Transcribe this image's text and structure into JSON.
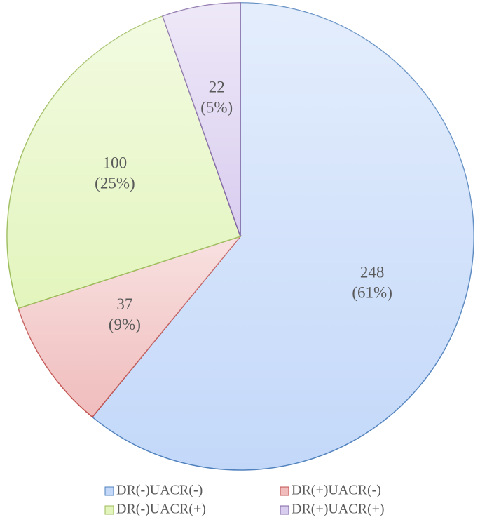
{
  "chart_data": {
    "type": "pie",
    "categories": [
      "DR(-)UACR(-)",
      "DR(+)UACR(-)",
      "DR(-)UACR(+)",
      "DR(+)UACR(+)"
    ],
    "values": [
      248,
      37,
      100,
      22
    ],
    "value_labels": [
      [
        "248",
        "(61%)"
      ],
      [
        "37",
        "(9%)"
      ],
      [
        "100",
        "(25%)"
      ],
      [
        "22",
        "(5%)"
      ]
    ],
    "colors": [
      "#c3d8f9",
      "#f0bcbc",
      "#e3f5bd",
      "#d9cdef"
    ],
    "edge_colors": [
      "#4f81bd",
      "#c0504d",
      "#9bbb59",
      "#8064a2"
    ],
    "legend": "bottom"
  }
}
